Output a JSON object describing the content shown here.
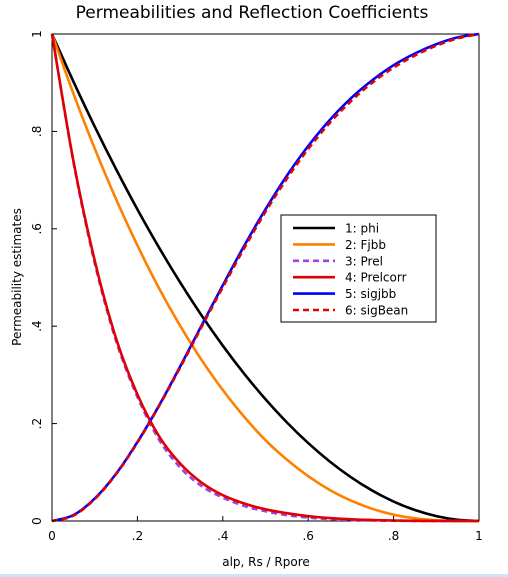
{
  "chart_data": {
    "type": "line",
    "title": "Permeabilities and Reflection Coefficients",
    "xlabel": "alp, Rs / Rpore",
    "ylabel": "Permeability estimates",
    "xlim": [
      0,
      1
    ],
    "ylim": [
      0,
      1
    ],
    "x_ticks": [
      {
        "value": 0,
        "label": "0"
      },
      {
        "value": 0.2,
        "label": ".2"
      },
      {
        "value": 0.4,
        "label": ".4"
      },
      {
        "value": 0.6,
        "label": ".6"
      },
      {
        "value": 0.8,
        "label": ".8"
      },
      {
        "value": 1,
        "label": "1"
      }
    ],
    "y_ticks": [
      {
        "value": 0,
        "label": "0"
      },
      {
        "value": 0.2,
        "label": ".2"
      },
      {
        "value": 0.4,
        "label": ".4"
      },
      {
        "value": 0.6,
        "label": ".6"
      },
      {
        "value": 0.8,
        "label": ".8"
      },
      {
        "value": 1,
        "label": "1"
      }
    ],
    "grid": false,
    "legend_position": "center-right",
    "x": [
      0,
      0.05,
      0.1,
      0.15,
      0.2,
      0.25,
      0.3,
      0.35,
      0.4,
      0.45,
      0.5,
      0.55,
      0.6,
      0.65,
      0.7,
      0.75,
      0.8,
      0.85,
      0.9,
      0.95,
      1.0
    ],
    "series": [
      {
        "name": "1: phi",
        "color": "#000000",
        "dash": "solid",
        "values": [
          1,
          0.9025,
          0.81,
          0.7225,
          0.64,
          0.5625,
          0.49,
          0.4225,
          0.36,
          0.3025,
          0.25,
          0.2025,
          0.16,
          0.1225,
          0.09,
          0.0625,
          0.04,
          0.0225,
          0.01,
          0.0025,
          0
        ]
      },
      {
        "name": "2: Fjbb",
        "color": "#ff8000",
        "dash": "solid",
        "values": [
          1,
          0.878,
          0.765,
          0.661,
          0.566,
          0.479,
          0.401,
          0.331,
          0.269,
          0.214,
          0.166,
          0.126,
          0.092,
          0.064,
          0.042,
          0.025,
          0.013,
          0.0055,
          0.0015,
          0.0002,
          0
        ]
      },
      {
        "name": "3: Prel",
        "color": "#a040e8",
        "dash": "dashed",
        "values": [
          1,
          0.738,
          0.53,
          0.37,
          0.255,
          0.168,
          0.11,
          0.072,
          0.048,
          0.031,
          0.02,
          0.012,
          0.007,
          0.004,
          0.002,
          0.001,
          0.0005,
          0.0002,
          0,
          0,
          0
        ]
      },
      {
        "name": "4: Prelcorr",
        "color": "#e00000",
        "dash": "solid",
        "values": [
          1,
          0.74,
          0.535,
          0.375,
          0.26,
          0.175,
          0.118,
          0.079,
          0.053,
          0.036,
          0.024,
          0.016,
          0.01,
          0.006,
          0.0035,
          0.002,
          0.001,
          0.0004,
          0.0001,
          0,
          0
        ]
      },
      {
        "name": "5: sigjbb",
        "color": "#0000ff",
        "dash": "solid",
        "values": [
          0,
          0.012,
          0.046,
          0.097,
          0.162,
          0.236,
          0.317,
          0.401,
          0.484,
          0.565,
          0.64,
          0.709,
          0.77,
          0.823,
          0.868,
          0.905,
          0.936,
          0.96,
          0.979,
          0.993,
          1
        ]
      },
      {
        "name": "6: sigBean",
        "color": "#e00000",
        "dash": "dashed",
        "values": [
          0,
          0.011,
          0.045,
          0.096,
          0.161,
          0.235,
          0.315,
          0.398,
          0.48,
          0.56,
          0.635,
          0.703,
          0.764,
          0.817,
          0.862,
          0.9,
          0.931,
          0.956,
          0.976,
          0.991,
          1
        ]
      }
    ]
  }
}
